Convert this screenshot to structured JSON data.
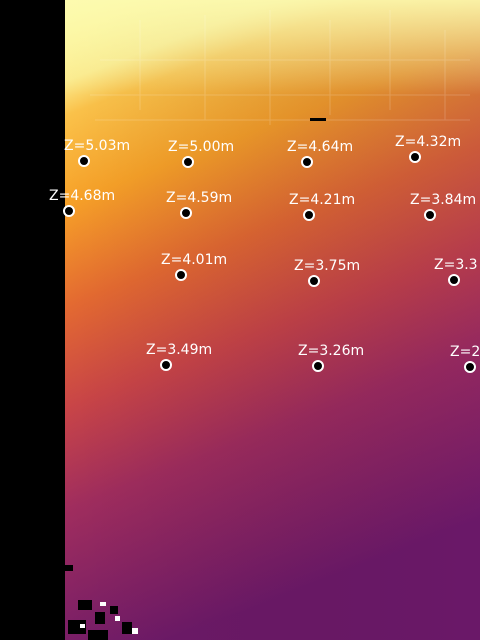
{
  "image": {
    "description": "Depth map of an interior room rendered with an inferno-style colormap",
    "colors": {
      "near": "#fcfaa0",
      "mid_near": "#f9a52a",
      "mid": "#e46734",
      "mid_far": "#b5365a",
      "far": "#741b6a",
      "invalid": "#000000",
      "marker_fill": "#000000",
      "marker_ring": "#ffffff",
      "label_text": "#ffffff"
    }
  },
  "depth_points": [
    {
      "label": "Z=5.03m",
      "depth_m": 5.03
    },
    {
      "label": "Z=5.00m",
      "depth_m": 5.0
    },
    {
      "label": "Z=4.64m",
      "depth_m": 4.64
    },
    {
      "label": "Z=4.32m",
      "depth_m": 4.32
    },
    {
      "label": "Z=4.68m",
      "depth_m": 4.68
    },
    {
      "label": "Z=4.59m",
      "depth_m": 4.59
    },
    {
      "label": "Z=4.21m",
      "depth_m": 4.21
    },
    {
      "label": "Z=3.84m",
      "depth_m": 3.84
    },
    {
      "label": "Z=4.01m",
      "depth_m": 4.01
    },
    {
      "label": "Z=3.75m",
      "depth_m": 3.75
    },
    {
      "label": "Z=3.3",
      "depth_m": 3.3
    },
    {
      "label": "Z=3.49m",
      "depth_m": 3.49
    },
    {
      "label": "Z=3.26m",
      "depth_m": 3.26
    },
    {
      "label": "Z=2",
      "depth_m": 2
    }
  ]
}
